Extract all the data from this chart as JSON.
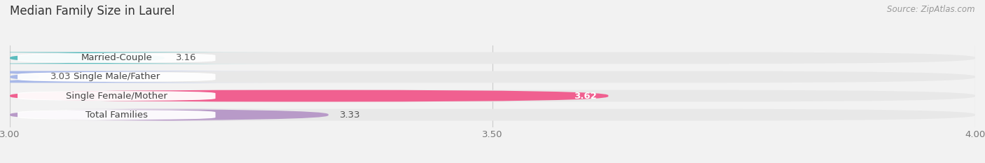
{
  "title": "Median Family Size in Laurel",
  "source": "Source: ZipAtlas.com",
  "categories": [
    "Married-Couple",
    "Single Male/Father",
    "Single Female/Mother",
    "Total Families"
  ],
  "values": [
    3.16,
    3.03,
    3.62,
    3.33
  ],
  "colors": [
    "#5bbcbe",
    "#a8b8e8",
    "#f06090",
    "#b89ac8"
  ],
  "xlim_min": 3.0,
  "xlim_max": 4.0,
  "xticks": [
    3.0,
    3.5,
    4.0
  ],
  "xtick_labels": [
    "3.00",
    "3.50",
    "4.00"
  ],
  "bar_height": 0.62,
  "label_fontsize": 9.5,
  "title_fontsize": 12,
  "source_fontsize": 8.5,
  "value_inside": [
    false,
    false,
    true,
    false
  ],
  "bg_color": "#f2f2f2",
  "bar_bg_color": "#e8e8e8",
  "label_box_color": "white",
  "label_text_color": "#444444",
  "value_text_color_outside": "#555555",
  "value_text_color_inside": "#ffffff",
  "grid_color": "#cccccc",
  "title_color": "#333333",
  "source_color": "#999999"
}
